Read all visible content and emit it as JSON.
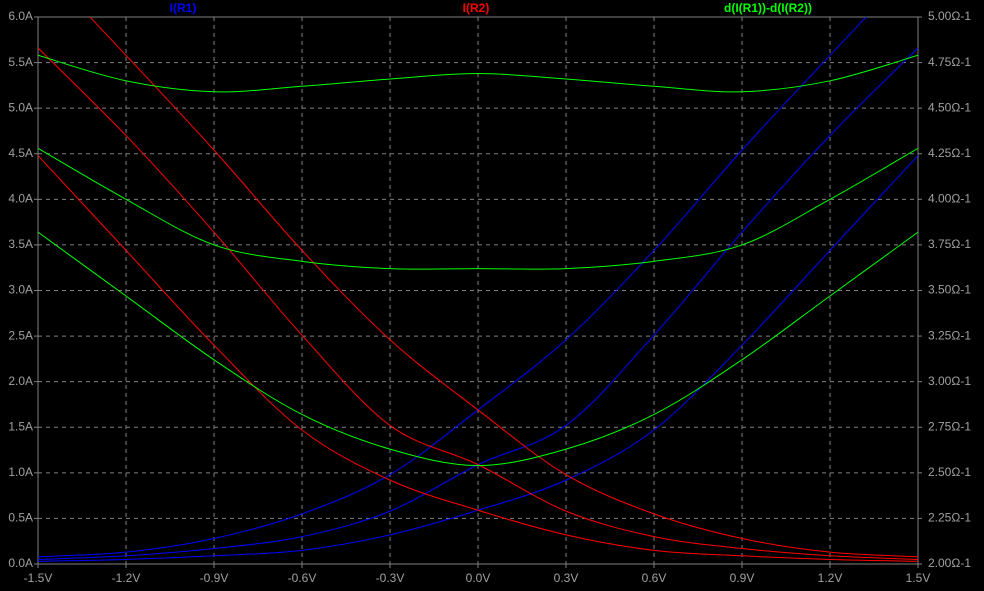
{
  "chart_data": {
    "type": "line",
    "x": [
      -1.5,
      -1.2,
      -0.9,
      -0.6,
      -0.3,
      0.0,
      0.3,
      0.6,
      0.9,
      1.2,
      1.5
    ],
    "xlim": [
      -1.5,
      1.5
    ],
    "xticks": [
      {
        "value": -1.5,
        "label": "-1.5V"
      },
      {
        "value": -1.2,
        "label": "-1.2V"
      },
      {
        "value": -0.9,
        "label": "-0.9V"
      },
      {
        "value": -0.6,
        "label": "-0.6V"
      },
      {
        "value": -0.3,
        "label": "-0.3V"
      },
      {
        "value": 0.0,
        "label": "0.0V"
      },
      {
        "value": 0.3,
        "label": "0.3V"
      },
      {
        "value": 0.6,
        "label": "0.6V"
      },
      {
        "value": 0.9,
        "label": "0.9V"
      },
      {
        "value": 1.2,
        "label": "1.2V"
      },
      {
        "value": 1.5,
        "label": "1.5V"
      }
    ],
    "ylim": [
      0,
      6
    ],
    "yticks": [
      {
        "value": 0,
        "label": "0.0A"
      },
      {
        "value": 0.5,
        "label": "0.5A"
      },
      {
        "value": 1,
        "label": "1.0A"
      },
      {
        "value": 1.5,
        "label": "1.5A"
      },
      {
        "value": 2,
        "label": "2.0A"
      },
      {
        "value": 2.5,
        "label": "2.5A"
      },
      {
        "value": 3,
        "label": "3.0A"
      },
      {
        "value": 3.5,
        "label": "3.5A"
      },
      {
        "value": 4,
        "label": "4.0A"
      },
      {
        "value": 4.5,
        "label": "4.5A"
      },
      {
        "value": 5,
        "label": "5.0A"
      },
      {
        "value": 5.5,
        "label": "5.5A"
      },
      {
        "value": 6,
        "label": "6.0A"
      }
    ],
    "y2lim": [
      2,
      5
    ],
    "y2ticks": [
      {
        "value": 2,
        "label": "2.00Ω-1"
      },
      {
        "value": 2.25,
        "label": "2.25Ω-1"
      },
      {
        "value": 2.5,
        "label": "2.50Ω-1"
      },
      {
        "value": 2.75,
        "label": "2.75Ω-1"
      },
      {
        "value": 3,
        "label": "3.00Ω-1"
      },
      {
        "value": 3.25,
        "label": "3.25Ω-1"
      },
      {
        "value": 3.5,
        "label": "3.50Ω-1"
      },
      {
        "value": 3.75,
        "label": "3.75Ω-1"
      },
      {
        "value": 4,
        "label": "4.00Ω-1"
      },
      {
        "value": 4.25,
        "label": "4.25Ω-1"
      },
      {
        "value": 4.5,
        "label": "4.50Ω-1"
      },
      {
        "value": 4.75,
        "label": "4.75Ω-1"
      },
      {
        "value": 5,
        "label": "5.00Ω-1"
      }
    ],
    "grid": true,
    "series": [
      {
        "name": "I(R1)",
        "color": "#0000ff",
        "axis": "y",
        "values": [
          [
            0.08,
            0.13,
            0.28,
            0.55,
            0.98,
            1.69,
            2.46,
            3.44,
            4.54,
            5.58,
            6.6
          ],
          [
            0.05,
            0.09,
            0.17,
            0.3,
            0.58,
            1.09,
            1.52,
            2.51,
            3.64,
            4.7,
            5.66
          ],
          [
            0.03,
            0.05,
            0.09,
            0.15,
            0.32,
            0.59,
            0.92,
            1.47,
            2.4,
            3.44,
            4.48
          ]
        ]
      },
      {
        "name": "I(R2)",
        "color": "#ff0000",
        "axis": "y",
        "values": [
          [
            6.6,
            5.58,
            4.54,
            3.44,
            2.46,
            1.69,
            0.98,
            0.55,
            0.28,
            0.13,
            0.08
          ],
          [
            5.66,
            4.7,
            3.64,
            2.51,
            1.52,
            1.09,
            0.58,
            0.3,
            0.17,
            0.09,
            0.05
          ],
          [
            4.48,
            3.44,
            2.4,
            1.47,
            0.92,
            0.59,
            0.32,
            0.15,
            0.09,
            0.05,
            0.03
          ]
        ]
      },
      {
        "name": "d(I(R1))-d(I(R2))",
        "color": "#00ff00",
        "axis": "y2",
        "values": [
          [
            4.79,
            4.65,
            4.59,
            4.62,
            4.66,
            4.69,
            4.66,
            4.62,
            4.59,
            4.65,
            4.79
          ],
          [
            4.28,
            4.0,
            3.75,
            3.66,
            3.62,
            3.62,
            3.62,
            3.66,
            3.75,
            4.0,
            4.28
          ],
          [
            3.82,
            3.47,
            3.12,
            2.82,
            2.63,
            2.54,
            2.63,
            2.82,
            3.12,
            3.47,
            3.82
          ]
        ]
      }
    ]
  }
}
